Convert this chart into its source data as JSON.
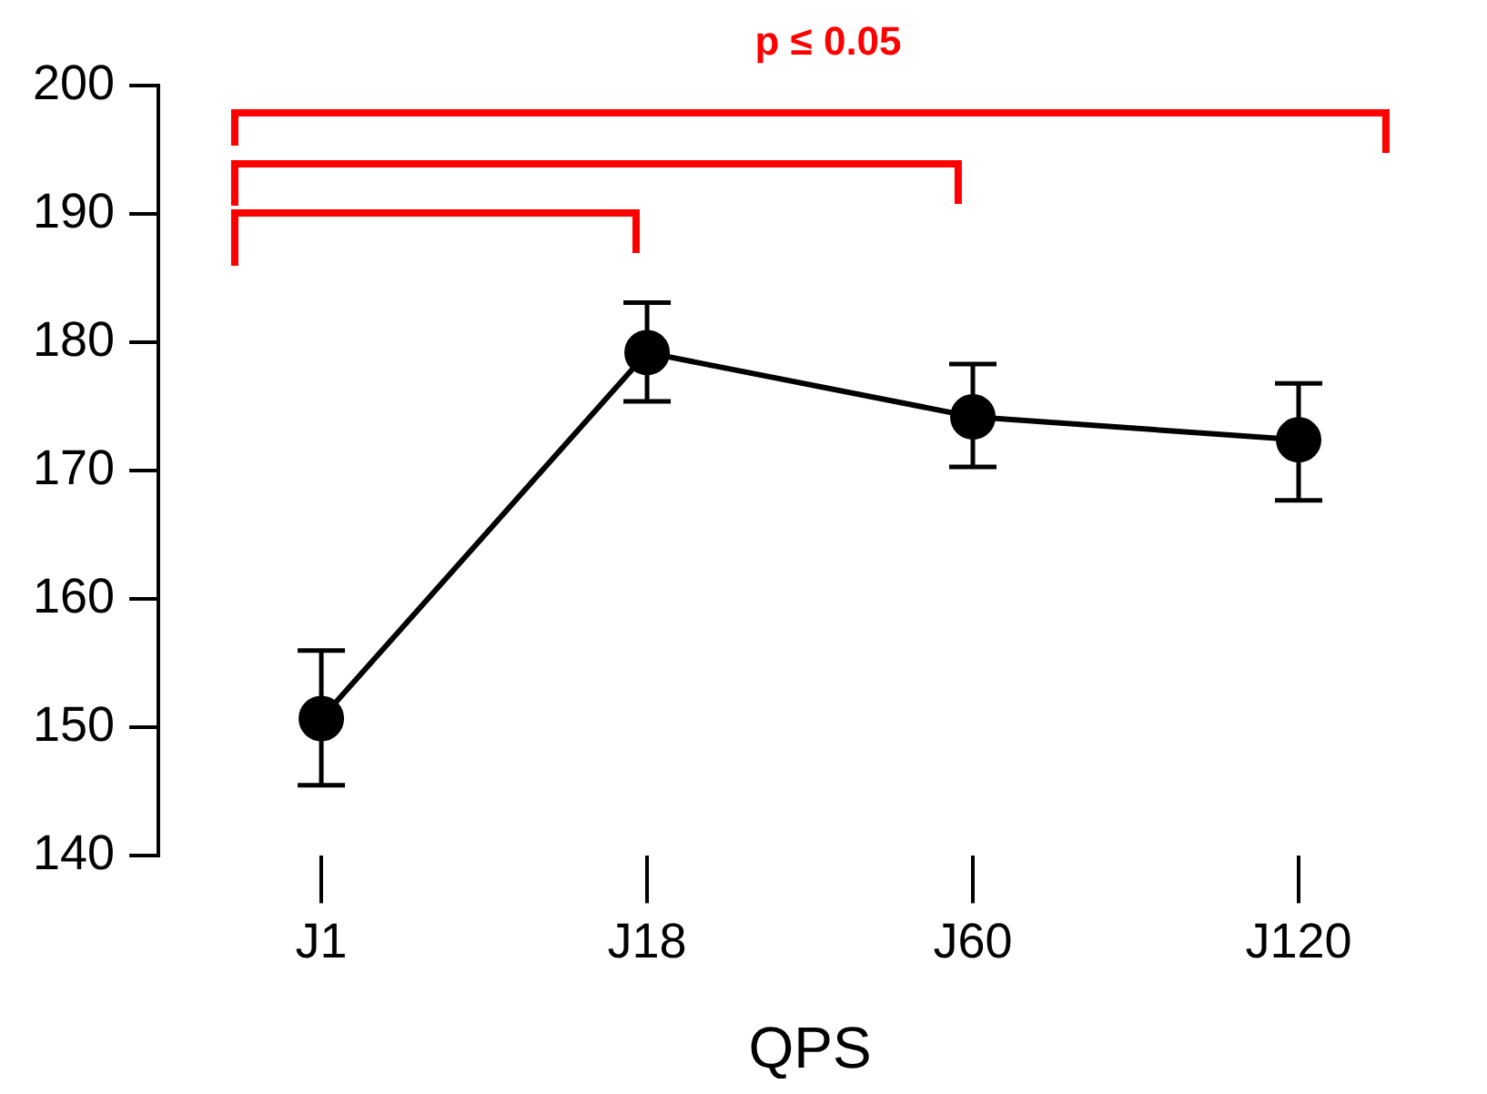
{
  "chart_data": {
    "type": "line",
    "xlabel": "QPS",
    "categories": [
      "J1",
      "J18",
      "J60",
      "J120"
    ],
    "series": [
      {
        "color": "#000000",
        "values": [
          150.7,
          179.2,
          174.2,
          172.4
        ],
        "errors": [
          [
            145.5,
            156.0
          ],
          [
            175.4,
            183.1
          ],
          [
            170.3,
            178.3
          ],
          [
            167.7,
            176.8
          ]
        ]
      }
    ],
    "ylim": [
      140,
      200
    ],
    "yticks": [
      140,
      150,
      160,
      170,
      180,
      190,
      200
    ],
    "grid": false,
    "legend": false,
    "marker": "circle",
    "line_style": "solid",
    "annotations": [
      "p ≤ 0.05"
    ]
  }
}
